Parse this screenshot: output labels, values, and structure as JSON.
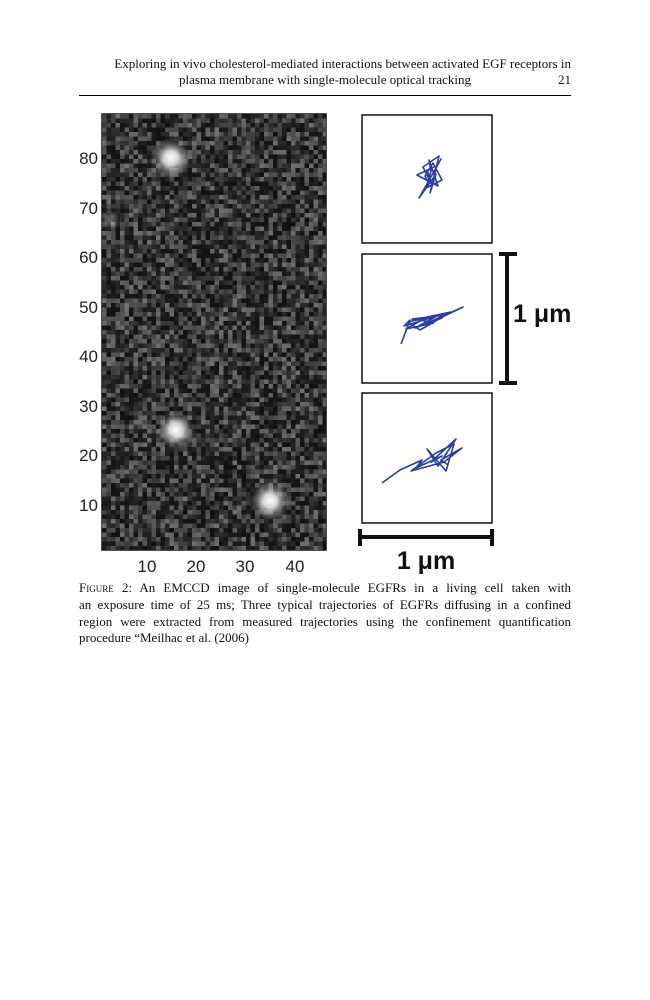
{
  "header": {
    "title_line1": "Exploring in vivo cholesterol-mediated interactions between activated EGF receptors in",
    "title_line2": "plasma membrane with single-molecule optical tracking",
    "page_number": "21"
  },
  "figure": {
    "y_tick_labels": [
      "80",
      "70",
      "60",
      "50",
      "40",
      "30",
      "20",
      "10"
    ],
    "x_tick_labels": [
      "10",
      "20",
      "30",
      "40"
    ],
    "scale_vertical": "1 μm",
    "scale_horizontal": "1 μm",
    "trajectory_color": "#2b3f9e"
  },
  "caption": {
    "label": "Figure 2",
    "lines": [
      ":  An EMCCD image of single-molecule EGFRs in a living cell taken with",
      "an exposure time of 25 ms; Three typical trajectories of EGFRs diffusing in a confined",
      "region were extracted from measured trajectories using the confinement quantification",
      "procedure “Meilhac et al. (2006)"
    ]
  }
}
